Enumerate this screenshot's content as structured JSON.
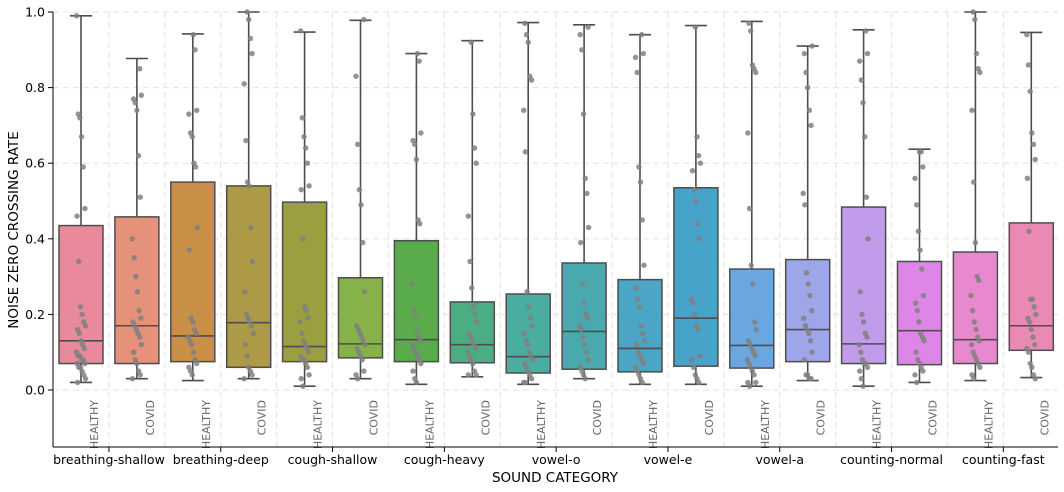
{
  "chart_data": {
    "type": "box",
    "xlabel": "SOUND CATEGORY",
    "ylabel": "NOISE ZERO CROSSING RATE",
    "ylim": [
      -0.15,
      1.0
    ],
    "yticks": [
      "0.0",
      "0.2",
      "0.4",
      "0.6",
      "0.8",
      "1.0"
    ],
    "grid": true,
    "categories": [
      "breathing-shallow",
      "breathing-deep",
      "cough-shallow",
      "cough-heavy",
      "vowel-o",
      "vowel-e",
      "vowel-a",
      "counting-normal",
      "counting-fast"
    ],
    "group_labels": [
      "HEALTHY",
      "COVID",
      "HEALTHY",
      "COVID",
      "HEALTHY",
      "COVID",
      "HEALTHY",
      "COVID",
      "HEALTHY",
      "COVID",
      "HEALTHY",
      "COVID",
      "HEALTHY",
      "COVID",
      "HEALTHY",
      "COVID",
      "HEALTHY",
      "COVID"
    ],
    "boxes": [
      {
        "color": "#e8899c",
        "whisker_low": 0.02,
        "q1": 0.07,
        "median": 0.13,
        "q3": 0.435,
        "whisker_high": 0.99,
        "points": [
          0.99,
          0.73,
          0.72,
          0.67,
          0.59,
          0.48,
          0.46,
          0.34,
          0.22,
          0.2,
          0.18,
          0.17,
          0.16,
          0.15,
          0.13,
          0.12,
          0.11,
          0.1,
          0.09,
          0.09,
          0.08,
          0.08,
          0.07,
          0.07,
          0.06,
          0.06,
          0.05,
          0.04,
          0.03,
          0.02
        ]
      },
      {
        "color": "#e6917a",
        "whisker_low": 0.03,
        "q1": 0.07,
        "median": 0.17,
        "q3": 0.458,
        "whisker_high": 0.877,
        "points": [
          0.85,
          0.78,
          0.77,
          0.76,
          0.74,
          0.62,
          0.51,
          0.4,
          0.35,
          0.3,
          0.26,
          0.21,
          0.19,
          0.18,
          0.17,
          0.16,
          0.15,
          0.14,
          0.12,
          0.1,
          0.08,
          0.07,
          0.05,
          0.04,
          0.03
        ]
      },
      {
        "color": "#c88f46",
        "whisker_low": 0.025,
        "q1": 0.075,
        "median": 0.143,
        "q3": 0.55,
        "whisker_high": 0.942,
        "points": [
          0.94,
          0.9,
          0.74,
          0.73,
          0.68,
          0.67,
          0.6,
          0.59,
          0.43,
          0.37,
          0.19,
          0.18,
          0.16,
          0.15,
          0.14,
          0.13,
          0.12,
          0.1,
          0.08,
          0.07,
          0.06,
          0.05,
          0.04
        ]
      },
      {
        "color": "#ad9a47",
        "whisker_low": 0.03,
        "q1": 0.06,
        "median": 0.178,
        "q3": 0.54,
        "whisker_high": 1.0,
        "points": [
          1.0,
          0.98,
          0.93,
          0.89,
          0.81,
          0.66,
          0.55,
          0.54,
          0.43,
          0.34,
          0.26,
          0.2,
          0.19,
          0.18,
          0.17,
          0.15,
          0.12,
          0.09,
          0.06,
          0.05,
          0.04,
          0.03
        ]
      },
      {
        "color": "#9c9f3f",
        "whisker_low": 0.01,
        "q1": 0.075,
        "median": 0.115,
        "q3": 0.497,
        "whisker_high": 0.947,
        "points": [
          0.95,
          0.72,
          0.67,
          0.64,
          0.6,
          0.54,
          0.53,
          0.4,
          0.22,
          0.21,
          0.19,
          0.18,
          0.15,
          0.13,
          0.12,
          0.11,
          0.1,
          0.09,
          0.08,
          0.08,
          0.07,
          0.06,
          0.04,
          0.03,
          0.01
        ]
      },
      {
        "color": "#87b149",
        "whisker_low": 0.03,
        "q1": 0.085,
        "median": 0.122,
        "q3": 0.297,
        "whisker_high": 0.978,
        "points": [
          0.98,
          0.83,
          0.65,
          0.53,
          0.49,
          0.39,
          0.26,
          0.17,
          0.16,
          0.15,
          0.14,
          0.13,
          0.12,
          0.11,
          0.1,
          0.09,
          0.08,
          0.05,
          0.04,
          0.03
        ]
      },
      {
        "color": "#5aab4a",
        "whisker_low": 0.015,
        "q1": 0.075,
        "median": 0.133,
        "q3": 0.395,
        "whisker_high": 0.89,
        "points": [
          0.89,
          0.87,
          0.68,
          0.66,
          0.65,
          0.61,
          0.45,
          0.44,
          0.28,
          0.21,
          0.19,
          0.16,
          0.14,
          0.13,
          0.12,
          0.11,
          0.1,
          0.09,
          0.08,
          0.07,
          0.05,
          0.03,
          0.02
        ]
      },
      {
        "color": "#4bad82",
        "whisker_low": 0.035,
        "q1": 0.072,
        "median": 0.12,
        "q3": 0.233,
        "whisker_high": 0.924,
        "points": [
          0.92,
          0.73,
          0.64,
          0.6,
          0.46,
          0.34,
          0.27,
          0.22,
          0.2,
          0.18,
          0.15,
          0.14,
          0.13,
          0.12,
          0.11,
          0.1,
          0.09,
          0.08,
          0.07,
          0.05,
          0.04,
          0.04
        ]
      },
      {
        "color": "#49ad9f",
        "whisker_low": 0.015,
        "q1": 0.045,
        "median": 0.088,
        "q3": 0.254,
        "whisker_high": 0.972,
        "points": [
          0.97,
          0.94,
          0.92,
          0.83,
          0.82,
          0.74,
          0.63,
          0.26,
          0.22,
          0.19,
          0.17,
          0.15,
          0.13,
          0.12,
          0.1,
          0.09,
          0.08,
          0.07,
          0.06,
          0.05,
          0.04,
          0.03,
          0.02,
          0.02
        ]
      },
      {
        "color": "#4aa9ae",
        "whisker_low": 0.03,
        "q1": 0.055,
        "median": 0.155,
        "q3": 0.336,
        "whisker_high": 0.966,
        "points": [
          0.96,
          0.94,
          0.9,
          0.73,
          0.56,
          0.52,
          0.43,
          0.39,
          0.28,
          0.23,
          0.2,
          0.19,
          0.17,
          0.16,
          0.14,
          0.12,
          0.1,
          0.08,
          0.06,
          0.05,
          0.04,
          0.03
        ]
      },
      {
        "color": "#4ba5c4",
        "whisker_low": 0.015,
        "q1": 0.048,
        "median": 0.11,
        "q3": 0.292,
        "whisker_high": 0.94,
        "points": [
          0.94,
          0.89,
          0.88,
          0.84,
          0.59,
          0.55,
          0.45,
          0.33,
          0.27,
          0.24,
          0.22,
          0.17,
          0.15,
          0.13,
          0.12,
          0.1,
          0.09,
          0.08,
          0.07,
          0.06,
          0.05,
          0.04,
          0.03,
          0.02
        ]
      },
      {
        "color": "#48a3cb",
        "whisker_low": 0.015,
        "q1": 0.063,
        "median": 0.19,
        "q3": 0.535,
        "whisker_high": 0.964,
        "points": [
          0.96,
          0.67,
          0.62,
          0.6,
          0.58,
          0.53,
          0.5,
          0.44,
          0.4,
          0.24,
          0.23,
          0.2,
          0.17,
          0.16,
          0.09,
          0.08,
          0.06,
          0.04,
          0.03,
          0.02
        ]
      },
      {
        "color": "#6aa7e0",
        "whisker_low": 0.01,
        "q1": 0.058,
        "median": 0.118,
        "q3": 0.32,
        "whisker_high": 0.975,
        "points": [
          0.97,
          0.95,
          0.86,
          0.85,
          0.84,
          0.68,
          0.48,
          0.33,
          0.28,
          0.18,
          0.16,
          0.13,
          0.12,
          0.11,
          0.1,
          0.09,
          0.08,
          0.07,
          0.06,
          0.05,
          0.04,
          0.02,
          0.02,
          0.01
        ]
      },
      {
        "color": "#9ea6ea",
        "whisker_low": 0.025,
        "q1": 0.075,
        "median": 0.16,
        "q3": 0.345,
        "whisker_high": 0.91,
        "points": [
          0.91,
          0.89,
          0.84,
          0.8,
          0.74,
          0.7,
          0.52,
          0.49,
          0.31,
          0.28,
          0.25,
          0.21,
          0.19,
          0.17,
          0.16,
          0.15,
          0.13,
          0.1,
          0.08,
          0.04,
          0.04,
          0.03,
          0.03
        ]
      },
      {
        "color": "#c09ceb",
        "whisker_low": 0.01,
        "q1": 0.07,
        "median": 0.122,
        "q3": 0.484,
        "whisker_high": 0.953,
        "points": [
          0.95,
          0.89,
          0.87,
          0.82,
          0.76,
          0.67,
          0.51,
          0.4,
          0.26,
          0.2,
          0.18,
          0.15,
          0.14,
          0.12,
          0.1,
          0.08,
          0.07,
          0.07,
          0.06,
          0.05,
          0.03,
          0.01
        ]
      },
      {
        "color": "#de86e8",
        "whisker_low": 0.02,
        "q1": 0.067,
        "median": 0.157,
        "q3": 0.34,
        "whisker_high": 0.637,
        "points": [
          0.63,
          0.63,
          0.59,
          0.56,
          0.49,
          0.42,
          0.37,
          0.32,
          0.25,
          0.23,
          0.21,
          0.18,
          0.15,
          0.14,
          0.13,
          0.1,
          0.08,
          0.07,
          0.06,
          0.05,
          0.04,
          0.02
        ]
      },
      {
        "color": "#e889cf",
        "whisker_low": 0.025,
        "q1": 0.07,
        "median": 0.133,
        "q3": 0.365,
        "whisker_high": 1.0,
        "points": [
          1.0,
          0.98,
          0.89,
          0.85,
          0.84,
          0.74,
          0.55,
          0.39,
          0.3,
          0.29,
          0.25,
          0.21,
          0.18,
          0.16,
          0.14,
          0.13,
          0.12,
          0.1,
          0.09,
          0.08,
          0.07,
          0.06,
          0.04,
          0.03
        ]
      },
      {
        "color": "#ea8ab4",
        "whisker_low": 0.033,
        "q1": 0.105,
        "median": 0.17,
        "q3": 0.442,
        "whisker_high": 0.946,
        "points": [
          0.94,
          0.86,
          0.79,
          0.68,
          0.65,
          0.61,
          0.56,
          0.42,
          0.24,
          0.24,
          0.22,
          0.2,
          0.19,
          0.18,
          0.16,
          0.14,
          0.12,
          0.11,
          0.1,
          0.07,
          0.06,
          0.04,
          0.03
        ]
      }
    ]
  }
}
